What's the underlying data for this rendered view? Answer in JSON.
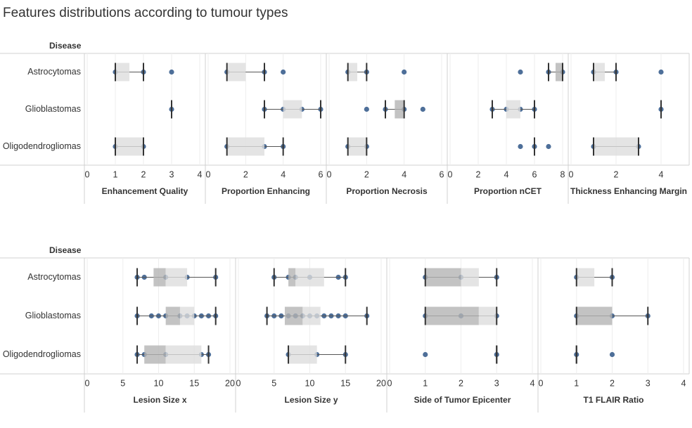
{
  "title": "Features distributions according to tumour types",
  "chart_data": [
    {
      "type": "box",
      "row_header": "Disease",
      "categories": [
        "Astrocytomas",
        "Glioblastomas",
        "Oligodendrogliomas"
      ],
      "point_color": "#4e6f99",
      "box_colors": {
        "lower": "#b4b4b4",
        "upper": "#dddddd"
      },
      "grid": true,
      "facets": [
        {
          "xlabel": "Enhancement Quality",
          "xlim": [
            0,
            4
          ],
          "xticks": [
            0,
            1,
            2,
            3,
            4
          ],
          "boxes": [
            {
              "points": [
                1,
                2,
                3
              ],
              "whisker_low": 1,
              "q1": 1,
              "median": 1,
              "q3": 1.5,
              "whisker_high": 2
            },
            {
              "points": [
                3
              ],
              "whisker_low": 3,
              "q1": 3,
              "median": 3,
              "q3": 3,
              "whisker_high": 3
            },
            {
              "points": [
                1,
                2
              ],
              "whisker_low": 1,
              "q1": 1,
              "median": 1,
              "q3": 2,
              "whisker_high": 2
            }
          ]
        },
        {
          "xlabel": "Proportion Enhancing",
          "xlim": [
            0,
            6
          ],
          "xticks": [
            0,
            2,
            4,
            6
          ],
          "boxes": [
            {
              "points": [
                1,
                3,
                4
              ],
              "whisker_low": 1,
              "q1": 1,
              "median": 1,
              "q3": 2,
              "whisker_high": 3
            },
            {
              "points": [
                3,
                4,
                5,
                6
              ],
              "whisker_low": 3,
              "q1": 4,
              "median": 4,
              "q3": 5,
              "whisker_high": 6
            },
            {
              "points": [
                1,
                3,
                4
              ],
              "whisker_low": 1,
              "q1": 1,
              "median": 1,
              "q3": 3,
              "whisker_high": 4
            }
          ]
        },
        {
          "xlabel": "Proportion Necrosis",
          "xlim": [
            0,
            6
          ],
          "xticks": [
            0,
            2,
            4,
            6
          ],
          "boxes": [
            {
              "points": [
                1,
                2,
                4
              ],
              "whisker_low": 1,
              "q1": 1,
              "median": 1,
              "q3": 1.5,
              "whisker_high": 2
            },
            {
              "points": [
                2,
                3,
                4,
                5
              ],
              "whisker_low": 3,
              "q1": 3.5,
              "median": 4,
              "q3": 4,
              "whisker_high": 4
            },
            {
              "points": [
                1,
                2
              ],
              "whisker_low": 1,
              "q1": 1,
              "median": 1,
              "q3": 2,
              "whisker_high": 2
            }
          ]
        },
        {
          "xlabel": "Proportion nCET",
          "xlim": [
            0,
            8
          ],
          "xticks": [
            0,
            2,
            4,
            6,
            8
          ],
          "boxes": [
            {
              "points": [
                5,
                7,
                8
              ],
              "whisker_low": 7,
              "q1": 7.5,
              "median": 8,
              "q3": 8,
              "whisker_high": 8
            },
            {
              "points": [
                3,
                4,
                5,
                6
              ],
              "whisker_low": 3,
              "q1": 4,
              "median": 4,
              "q3": 5,
              "whisker_high": 6
            },
            {
              "points": [
                5,
                6,
                7
              ],
              "whisker_low": 6,
              "q1": 6,
              "median": 6,
              "q3": 6,
              "whisker_high": 6
            }
          ]
        },
        {
          "xlabel": "Thickness Enhancing Margin",
          "xlim": [
            0,
            5
          ],
          "xticks": [
            0,
            2,
            4
          ],
          "boxes": [
            {
              "points": [
                1,
                2,
                4
              ],
              "whisker_low": 1,
              "q1": 1,
              "median": 1,
              "q3": 1.5,
              "whisker_high": 2
            },
            {
              "points": [
                4
              ],
              "whisker_low": 4,
              "q1": 4,
              "median": 4,
              "q3": 4,
              "whisker_high": 4
            },
            {
              "points": [
                1,
                3
              ],
              "whisker_low": 1,
              "q1": 1,
              "median": 1,
              "q3": 3,
              "whisker_high": 3
            }
          ]
        }
      ]
    },
    {
      "type": "box",
      "row_header": "Disease",
      "categories": [
        "Astrocytomas",
        "Glioblastomas",
        "Oligodendrogliomas"
      ],
      "point_color": "#4e6f99",
      "box_colors": {
        "lower": "#b4b4b4",
        "upper": "#dddddd"
      },
      "grid": true,
      "facets": [
        {
          "xlabel": "Lesion Size x",
          "xlim": [
            0,
            20
          ],
          "xticks": [
            0,
            5,
            10,
            15,
            20
          ],
          "boxes": [
            {
              "points": [
                7,
                8,
                11,
                14,
                18
              ],
              "whisker_low": 7,
              "q1": 9.3,
              "median": 11,
              "q3": 14,
              "whisker_high": 18
            },
            {
              "points": [
                7,
                9,
                10,
                11,
                13,
                14,
                15,
                16,
                17,
                18
              ],
              "whisker_low": 7,
              "q1": 11,
              "median": 13,
              "q3": 15,
              "whisker_high": 18
            },
            {
              "points": [
                7,
                8,
                11,
                16,
                17
              ],
              "whisker_low": 7,
              "q1": 8,
              "median": 11,
              "q3": 16,
              "whisker_high": 17
            }
          ]
        },
        {
          "xlabel": "Lesion Size y",
          "xlim": [
            0,
            20
          ],
          "xticks": [
            0,
            5,
            10,
            15,
            20
          ],
          "boxes": [
            {
              "points": [
                5,
                7,
                8,
                10,
                14,
                15
              ],
              "whisker_low": 5,
              "q1": 7,
              "median": 8,
              "q3": 12,
              "whisker_high": 15
            },
            {
              "points": [
                4,
                5,
                6,
                7,
                8,
                9,
                10,
                11,
                12,
                13,
                14,
                15,
                18
              ],
              "whisker_low": 4,
              "q1": 6.5,
              "median": 9,
              "q3": 11.5,
              "whisker_high": 18
            },
            {
              "points": [
                7,
                11,
                15
              ],
              "whisker_low": 7,
              "q1": 7,
              "median": 7,
              "q3": 11,
              "whisker_high": 15
            }
          ]
        },
        {
          "xlabel": "Side of Tumor Epicenter",
          "xlim": [
            0,
            4
          ],
          "xticks": [
            0,
            1,
            2,
            3,
            4
          ],
          "boxes": [
            {
              "points": [
                1,
                2,
                3
              ],
              "whisker_low": 1,
              "q1": 1,
              "median": 2,
              "q3": 2.5,
              "whisker_high": 3
            },
            {
              "points": [
                1,
                2,
                3
              ],
              "whisker_low": 1,
              "q1": 1,
              "median": 2.5,
              "q3": 3,
              "whisker_high": 3
            },
            {
              "points": [
                1,
                3
              ],
              "whisker_low": 3,
              "q1": 3,
              "median": 3,
              "q3": 3,
              "whisker_high": 3
            }
          ]
        },
        {
          "xlabel": "T1 FLAIR Ratio",
          "xlim": [
            0,
            4
          ],
          "xticks": [
            0,
            1,
            2,
            3,
            4
          ],
          "boxes": [
            {
              "points": [
                1,
                2
              ],
              "whisker_low": 1,
              "q1": 1,
              "median": 1,
              "q3": 1.5,
              "whisker_high": 2
            },
            {
              "points": [
                1,
                2,
                3
              ],
              "whisker_low": 1,
              "q1": 1,
              "median": 2,
              "q3": 2,
              "whisker_high": 3
            },
            {
              "points": [
                1,
                2
              ],
              "whisker_low": 1,
              "q1": 1,
              "median": 1,
              "q3": 1,
              "whisker_high": 1
            }
          ]
        }
      ]
    }
  ]
}
